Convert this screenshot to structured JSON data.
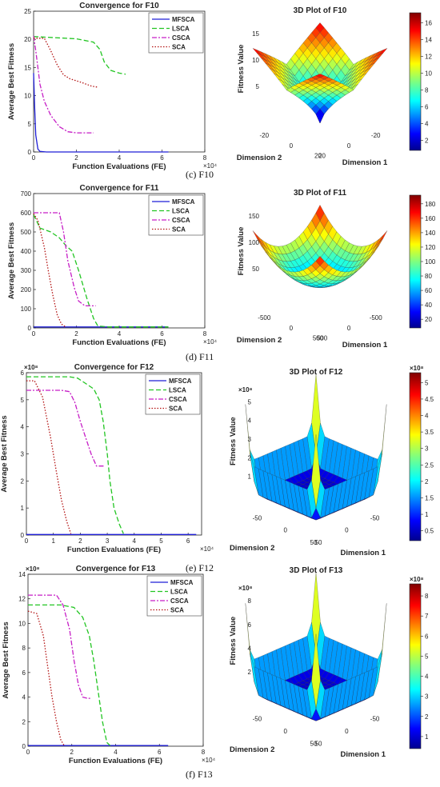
{
  "chart_data": [
    {
      "type": "line",
      "title": "Convergence for F10",
      "xlabel": "Function Evaluations (FE)",
      "ylabel": "Average Best Fitness",
      "x_exponent": "×10⁴",
      "y_exponent": "",
      "xlim": [
        0,
        8
      ],
      "ylim": [
        0,
        25
      ],
      "xticks": [
        "0",
        "2",
        "4",
        "6",
        "8"
      ],
      "yticks": [
        "0",
        "5",
        "10",
        "15",
        "20",
        "25"
      ],
      "legend": "top-right",
      "series": [
        {
          "name": "MFSCA",
          "color": "#1f1fd6",
          "dash": "",
          "points": [
            [
              0,
              14
            ],
            [
              0.05,
              8
            ],
            [
              0.1,
              3
            ],
            [
              0.2,
              0.5
            ],
            [
              0.3,
              0.1
            ],
            [
              0.6,
              0
            ],
            [
              6.3,
              0
            ]
          ]
        },
        {
          "name": "LSCA",
          "color": "#22c522",
          "dash": "6,3",
          "points": [
            [
              0,
              20.5
            ],
            [
              1.0,
              20.3
            ],
            [
              2.0,
              20.1
            ],
            [
              2.8,
              19.5
            ],
            [
              3.1,
              18.2
            ],
            [
              3.3,
              16.0
            ],
            [
              3.6,
              14.5
            ],
            [
              4.0,
              14.0
            ],
            [
              4.3,
              13.8
            ]
          ]
        },
        {
          "name": "CSCA",
          "color": "#c61ec6",
          "dash": "6,2,2,2",
          "points": [
            [
              0,
              20.6
            ],
            [
              0.1,
              18
            ],
            [
              0.3,
              12
            ],
            [
              0.5,
              9
            ],
            [
              0.8,
              6.5
            ],
            [
              1.2,
              4.5
            ],
            [
              1.6,
              3.6
            ],
            [
              2.0,
              3.4
            ],
            [
              2.8,
              3.4
            ]
          ]
        },
        {
          "name": "SCA",
          "color": "#b31212",
          "dash": "1.5,2",
          "points": [
            [
              0,
              20.2
            ],
            [
              0.5,
              20.2
            ],
            [
              0.8,
              18
            ],
            [
              1.1,
              15.5
            ],
            [
              1.4,
              13.7
            ],
            [
              1.7,
              13.0
            ],
            [
              2.2,
              12.4
            ],
            [
              2.7,
              11.7
            ],
            [
              3.0,
              11.5
            ]
          ]
        }
      ]
    },
    {
      "type": "line",
      "title": "Convergence for F11",
      "xlabel": "Function Evaluations (FE)",
      "ylabel": "Average Best Fitness",
      "x_exponent": "×10⁴",
      "y_exponent": "",
      "xlim": [
        0,
        8
      ],
      "ylim": [
        0,
        700
      ],
      "xticks": [
        "0",
        "2",
        "4",
        "6",
        "8"
      ],
      "yticks": [
        "0",
        "100",
        "200",
        "300",
        "400",
        "500",
        "600",
        "700"
      ],
      "legend": "top-right",
      "series": [
        {
          "name": "MFSCA",
          "color": "#1f1fd6",
          "dash": "",
          "points": [
            [
              0,
              5
            ],
            [
              6.3,
              5
            ]
          ]
        },
        {
          "name": "LSCA",
          "color": "#22c522",
          "dash": "6,3",
          "points": [
            [
              0,
              590
            ],
            [
              0.3,
              520
            ],
            [
              0.8,
              500
            ],
            [
              1.2,
              470
            ],
            [
              1.5,
              430
            ],
            [
              1.8,
              400
            ],
            [
              2.1,
              300
            ],
            [
              2.5,
              150
            ],
            [
              2.8,
              50
            ],
            [
              3.0,
              10
            ],
            [
              3.5,
              5
            ],
            [
              6.3,
              5
            ]
          ]
        },
        {
          "name": "CSCA",
          "color": "#c61ec6",
          "dash": "6,2,2,2",
          "points": [
            [
              0,
              600
            ],
            [
              0.4,
              600
            ],
            [
              1.2,
              600
            ],
            [
              1.4,
              500
            ],
            [
              1.6,
              350
            ],
            [
              1.9,
              210
            ],
            [
              2.1,
              140
            ],
            [
              2.4,
              115
            ],
            [
              2.9,
              115
            ]
          ]
        },
        {
          "name": "SCA",
          "color": "#b31212",
          "dash": "1.5,2",
          "points": [
            [
              0,
              595
            ],
            [
              0.2,
              560
            ],
            [
              0.5,
              420
            ],
            [
              0.7,
              290
            ],
            [
              0.9,
              170
            ],
            [
              1.1,
              70
            ],
            [
              1.3,
              20
            ],
            [
              1.5,
              5
            ]
          ]
        }
      ]
    },
    {
      "type": "line",
      "title": "Convergence for F12",
      "xlabel": "Function Evaluations (FE)",
      "ylabel": "Average Best Fitness",
      "x_exponent": "×10⁴",
      "y_exponent": "×10⁸",
      "xlim": [
        0,
        6.5
      ],
      "ylim": [
        0,
        6
      ],
      "xticks": [
        "0",
        "1",
        "2",
        "3",
        "4",
        "5",
        "6"
      ],
      "yticks": [
        "0",
        "1",
        "2",
        "3",
        "4",
        "5",
        "6"
      ],
      "legend": "top-right",
      "series": [
        {
          "name": "MFSCA",
          "color": "#1f1fd6",
          "dash": "",
          "points": [
            [
              0,
              0.02
            ],
            [
              6.3,
              0.02
            ]
          ]
        },
        {
          "name": "LSCA",
          "color": "#22c522",
          "dash": "6,3",
          "points": [
            [
              0,
              5.85
            ],
            [
              1.6,
              5.85
            ],
            [
              1.9,
              5.8
            ],
            [
              2.2,
              5.6
            ],
            [
              2.5,
              5.4
            ],
            [
              2.7,
              5.0
            ],
            [
              2.85,
              4.2
            ],
            [
              3.0,
              3.0
            ],
            [
              3.1,
              2.0
            ],
            [
              3.25,
              1.0
            ],
            [
              3.45,
              0.4
            ],
            [
              3.6,
              0.05
            ]
          ]
        },
        {
          "name": "CSCA",
          "color": "#c61ec6",
          "dash": "6,2,2,2",
          "points": [
            [
              0,
              5.35
            ],
            [
              1.3,
              5.35
            ],
            [
              1.6,
              5.3
            ],
            [
              1.8,
              4.9
            ],
            [
              2.0,
              4.2
            ],
            [
              2.2,
              3.6
            ],
            [
              2.4,
              3.0
            ],
            [
              2.6,
              2.55
            ],
            [
              2.9,
              2.55
            ]
          ]
        },
        {
          "name": "SCA",
          "color": "#b31212",
          "dash": "1.5,2",
          "points": [
            [
              0,
              5.7
            ],
            [
              0.3,
              5.7
            ],
            [
              0.6,
              5.1
            ],
            [
              0.9,
              3.6
            ],
            [
              1.1,
              2.4
            ],
            [
              1.3,
              1.3
            ],
            [
              1.5,
              0.5
            ],
            [
              1.65,
              0.05
            ]
          ]
        }
      ]
    },
    {
      "type": "line",
      "title": "Convergence for F13",
      "xlabel": "Function Evaluations (FE)",
      "ylabel": "Average Best Fitness",
      "x_exponent": "×10⁴",
      "y_exponent": "×10⁸",
      "xlim": [
        0,
        8
      ],
      "ylim": [
        0,
        14
      ],
      "xticks": [
        "0",
        "2",
        "4",
        "6",
        "8"
      ],
      "yticks": [
        "0",
        "2",
        "4",
        "6",
        "8",
        "10",
        "12",
        "14"
      ],
      "legend": "top-right",
      "series": [
        {
          "name": "MFSCA",
          "color": "#1f1fd6",
          "dash": "",
          "points": [
            [
              0,
              0.05
            ],
            [
              6.4,
              0.05
            ]
          ]
        },
        {
          "name": "LSCA",
          "color": "#22c522",
          "dash": "6,3",
          "points": [
            [
              0,
              11.5
            ],
            [
              1.5,
              11.5
            ],
            [
              2.1,
              11.3
            ],
            [
              2.5,
              10.5
            ],
            [
              2.8,
              9.0
            ],
            [
              3.0,
              7.0
            ],
            [
              3.2,
              4.5
            ],
            [
              3.4,
              2.0
            ],
            [
              3.6,
              0.3
            ],
            [
              3.75,
              0.05
            ]
          ]
        },
        {
          "name": "CSCA",
          "color": "#c61ec6",
          "dash": "6,2,2,2",
          "points": [
            [
              0,
              12.3
            ],
            [
              1.3,
              12.3
            ],
            [
              1.6,
              11.5
            ],
            [
              1.9,
              9.5
            ],
            [
              2.1,
              7.0
            ],
            [
              2.3,
              5.0
            ],
            [
              2.5,
              4.0
            ],
            [
              2.7,
              3.9
            ],
            [
              2.9,
              3.9
            ]
          ]
        },
        {
          "name": "SCA",
          "color": "#b31212",
          "dash": "1.5,2",
          "points": [
            [
              0,
              11.0
            ],
            [
              0.4,
              10.8
            ],
            [
              0.7,
              9.0
            ],
            [
              0.9,
              6.5
            ],
            [
              1.1,
              4.0
            ],
            [
              1.3,
              2.0
            ],
            [
              1.5,
              0.5
            ],
            [
              1.65,
              0.05
            ]
          ]
        }
      ]
    }
  ],
  "surfaces": [
    {
      "title": "3D Plot of F10",
      "zlabel": "Fitness Value",
      "xlabel": "Dimension 1",
      "ylabel": "Dimension 2",
      "zticks": [
        "5",
        "10",
        "15"
      ],
      "xticks": [
        "-20",
        "0",
        "20"
      ],
      "yticks": [
        "20",
        "0",
        "-20"
      ],
      "cbar_ticks": [
        "2",
        "4",
        "6",
        "8",
        "10",
        "12",
        "14",
        "16"
      ],
      "cbar_exponent": "",
      "z_exponent": "",
      "shape": "funnel"
    },
    {
      "title": "3D Plot of F11",
      "zlabel": "Fitness Value",
      "xlabel": "Dimension 1",
      "ylabel": "Dimension 2",
      "zticks": [
        "50",
        "100",
        "150"
      ],
      "xticks": [
        "-500",
        "0",
        "500"
      ],
      "yticks": [
        "500",
        "0",
        "-500"
      ],
      "cbar_ticks": [
        "20",
        "40",
        "60",
        "80",
        "100",
        "120",
        "140",
        "160",
        "180"
      ],
      "cbar_exponent": "",
      "z_exponent": "",
      "shape": "bowl"
    },
    {
      "title": "3D Plot of F12",
      "zlabel": "Fitness Value",
      "xlabel": "Dimension 1",
      "ylabel": "Dimension 2",
      "zticks": [
        "1",
        "2",
        "3",
        "4",
        "5"
      ],
      "xticks": [
        "-50",
        "0",
        "50"
      ],
      "yticks": [
        "50",
        "0",
        "-50"
      ],
      "cbar_ticks": [
        "0.5",
        "1",
        "1.5",
        "2",
        "2.5",
        "3",
        "3.5",
        "4",
        "4.5",
        "5"
      ],
      "cbar_exponent": "×10⁸",
      "z_exponent": "×10⁸",
      "shape": "flat"
    },
    {
      "title": "3D Plot of F13",
      "zlabel": "Fitness Value",
      "xlabel": "Dimension 1",
      "ylabel": "Dimension 2",
      "zticks": [
        "2",
        "4",
        "6",
        "8"
      ],
      "xticks": [
        "-50",
        "0",
        "50"
      ],
      "yticks": [
        "50",
        "0",
        "-50"
      ],
      "cbar_ticks": [
        "1",
        "2",
        "3",
        "4",
        "5",
        "6",
        "7",
        "8"
      ],
      "cbar_exponent": "×10⁸",
      "z_exponent": "×10⁸",
      "shape": "flat"
    }
  ],
  "captions": [
    "(c) F10",
    "(d) F11",
    "(e) F12",
    "(f) F13"
  ]
}
